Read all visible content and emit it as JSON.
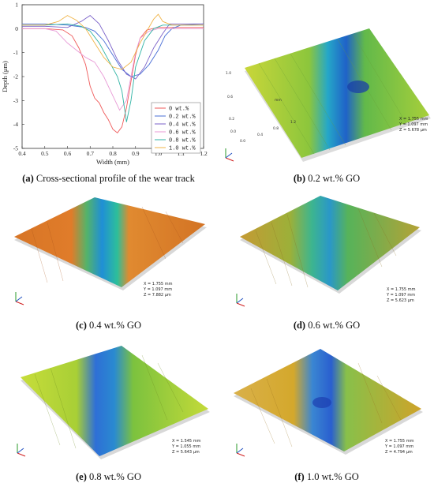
{
  "chart_data": [
    {
      "type": "line",
      "xlabel": "Width (mm)",
      "ylabel": "Depth (μm)",
      "xlim": [
        0.4,
        1.2
      ],
      "ylim": [
        -5,
        1
      ],
      "x_ticks": [
        "0.4",
        "0.5",
        "0.6",
        "0.7",
        "0.8",
        "0.9",
        "1.0",
        "1.1",
        "1.2"
      ],
      "y_ticks": [
        "1",
        "0",
        "-1",
        "-2",
        "-3",
        "-4",
        "-5"
      ],
      "legend_position": "bottom-right",
      "series": [
        {
          "name": "0 wt.%",
          "color": "#ef5a5a",
          "points": [
            [
              0.4,
              0.0
            ],
            [
              0.5,
              0.0
            ],
            [
              0.58,
              -0.05
            ],
            [
              0.62,
              -0.3
            ],
            [
              0.65,
              -0.8
            ],
            [
              0.68,
              -1.5
            ],
            [
              0.7,
              -2.4
            ],
            [
              0.72,
              -2.9
            ],
            [
              0.74,
              -3.1
            ],
            [
              0.76,
              -3.5
            ],
            [
              0.78,
              -3.8
            ],
            [
              0.8,
              -4.2
            ],
            [
              0.82,
              -4.35
            ],
            [
              0.84,
              -4.1
            ],
            [
              0.86,
              -3.3
            ],
            [
              0.88,
              -2.2
            ],
            [
              0.9,
              -1.1
            ],
            [
              0.92,
              -0.4
            ],
            [
              0.95,
              -0.05
            ],
            [
              1.0,
              0.05
            ],
            [
              1.1,
              0.05
            ],
            [
              1.2,
              0.05
            ]
          ]
        },
        {
          "name": "0.2 wt.%",
          "color": "#4a6fd6",
          "points": [
            [
              0.4,
              0.2
            ],
            [
              0.5,
              0.2
            ],
            [
              0.6,
              0.15
            ],
            [
              0.68,
              0.05
            ],
            [
              0.72,
              -0.1
            ],
            [
              0.76,
              -0.5
            ],
            [
              0.8,
              -1.1
            ],
            [
              0.84,
              -1.7
            ],
            [
              0.88,
              -2.0
            ],
            [
              0.92,
              -1.9
            ],
            [
              0.96,
              -1.5
            ],
            [
              1.0,
              -0.9
            ],
            [
              1.03,
              -0.3
            ],
            [
              1.06,
              0.0
            ],
            [
              1.1,
              0.15
            ],
            [
              1.2,
              0.2
            ]
          ]
        },
        {
          "name": "0.4 wt.%",
          "color": "#7b62c9",
          "points": [
            [
              0.4,
              0.1
            ],
            [
              0.5,
              0.1
            ],
            [
              0.6,
              0.05
            ],
            [
              0.66,
              0.3
            ],
            [
              0.7,
              0.55
            ],
            [
              0.74,
              0.2
            ],
            [
              0.78,
              -0.5
            ],
            [
              0.82,
              -1.3
            ],
            [
              0.86,
              -1.9
            ],
            [
              0.9,
              -2.1
            ],
            [
              0.94,
              -1.6
            ],
            [
              0.98,
              -0.8
            ],
            [
              1.02,
              -0.2
            ],
            [
              1.05,
              0.2
            ],
            [
              1.1,
              0.2
            ],
            [
              1.2,
              0.2
            ]
          ]
        },
        {
          "name": "0.6 wt.%",
          "color": "#e89ad6",
          "points": [
            [
              0.4,
              0.0
            ],
            [
              0.5,
              0.0
            ],
            [
              0.55,
              -0.1
            ],
            [
              0.6,
              -0.6
            ],
            [
              0.64,
              -0.9
            ],
            [
              0.68,
              -1.2
            ],
            [
              0.72,
              -1.4
            ],
            [
              0.76,
              -2.0
            ],
            [
              0.8,
              -2.8
            ],
            [
              0.83,
              -3.4
            ],
            [
              0.86,
              -3.0
            ],
            [
              0.88,
              -2.0
            ],
            [
              0.9,
              -1.0
            ],
            [
              0.92,
              -0.4
            ],
            [
              0.96,
              -0.1
            ],
            [
              1.0,
              0.0
            ],
            [
              1.2,
              0.0
            ]
          ]
        },
        {
          "name": "0.8 wt.%",
          "color": "#2fb3a4",
          "points": [
            [
              0.4,
              0.15
            ],
            [
              0.5,
              0.15
            ],
            [
              0.6,
              0.2
            ],
            [
              0.66,
              0.1
            ],
            [
              0.7,
              -0.1
            ],
            [
              0.74,
              -0.6
            ],
            [
              0.78,
              -1.3
            ],
            [
              0.82,
              -2.0
            ],
            [
              0.84,
              -2.6
            ],
            [
              0.86,
              -3.9
            ],
            [
              0.88,
              -3.0
            ],
            [
              0.9,
              -1.6
            ],
            [
              0.94,
              -0.5
            ],
            [
              0.98,
              0.0
            ],
            [
              1.02,
              0.15
            ],
            [
              1.1,
              0.15
            ],
            [
              1.2,
              0.15
            ]
          ]
        },
        {
          "name": "1.0 wt.%",
          "color": "#f0b448",
          "points": [
            [
              0.4,
              0.15
            ],
            [
              0.5,
              0.15
            ],
            [
              0.56,
              0.3
            ],
            [
              0.6,
              0.55
            ],
            [
              0.64,
              0.35
            ],
            [
              0.68,
              0.0
            ],
            [
              0.72,
              -0.6
            ],
            [
              0.76,
              -1.2
            ],
            [
              0.8,
              -1.6
            ],
            [
              0.84,
              -1.7
            ],
            [
              0.88,
              -1.4
            ],
            [
              0.92,
              -0.6
            ],
            [
              0.95,
              -0.1
            ],
            [
              0.98,
              0.4
            ],
            [
              1.0,
              0.6
            ],
            [
              1.02,
              0.3
            ],
            [
              1.06,
              0.15
            ],
            [
              1.2,
              0.15
            ]
          ]
        }
      ]
    }
  ],
  "captions": {
    "a": {
      "tag": "(a)",
      "text": " Cross-sectional profile of the wear track"
    },
    "b": {
      "tag": "(b)",
      "text": " 0.2 wt.% GO"
    },
    "c": {
      "tag": "(c)",
      "text": " 0.4 wt.% GO"
    },
    "d": {
      "tag": "(d)",
      "text": " 0.6 wt.% GO"
    },
    "e": {
      "tag": "(e)",
      "text": " 0.8 wt.% GO"
    },
    "f": {
      "tag": "(f)",
      "text": " 1.0 wt.% GO"
    }
  },
  "surfaces": {
    "b": {
      "base": "#9acb3c",
      "edge": "#d5d5d5",
      "track": "#1d7fd8",
      "readout": [
        "X = 1.755 mm",
        "Y = 1.097 mm",
        "Z = 5.678 μm"
      ],
      "ticks_left": [
        "0.0",
        "0.2",
        "0.4",
        "0.6",
        "0.8",
        "1.0"
      ],
      "ticks_bottom": [
        "0.0",
        "0.2",
        "0.4",
        "0.6",
        "0.8",
        "1.0",
        "1.2",
        "1.4",
        "1.6"
      ],
      "unit": "mm"
    },
    "c": {
      "base": "#e07a28",
      "edge": "#d5d5d5",
      "track": "#1da4c8",
      "readout": [
        "X = 1.755 mm",
        "Y = 1.097 mm",
        "Z = 7.882 μm"
      ]
    },
    "d": {
      "base": "#b8a732",
      "edge": "#d5d5d5",
      "track": "#2ab38a",
      "readout": [
        "X = 1.755 mm",
        "Y = 1.097 mm",
        "Z = 5.623 μm"
      ]
    },
    "e": {
      "base": "#b8d431",
      "edge": "#d5d5d5",
      "track": "#2473d6",
      "readout": [
        "X = 1.545 mm",
        "Y = 1.055 mm",
        "Z = 5.643 μm"
      ]
    },
    "f": {
      "base": "#d6a92a",
      "edge": "#d5d5d5",
      "track": "#2a74d4",
      "readout": [
        "X = 1.755 mm",
        "Y = 1.097 mm",
        "Z = 4.794 μm"
      ]
    }
  }
}
